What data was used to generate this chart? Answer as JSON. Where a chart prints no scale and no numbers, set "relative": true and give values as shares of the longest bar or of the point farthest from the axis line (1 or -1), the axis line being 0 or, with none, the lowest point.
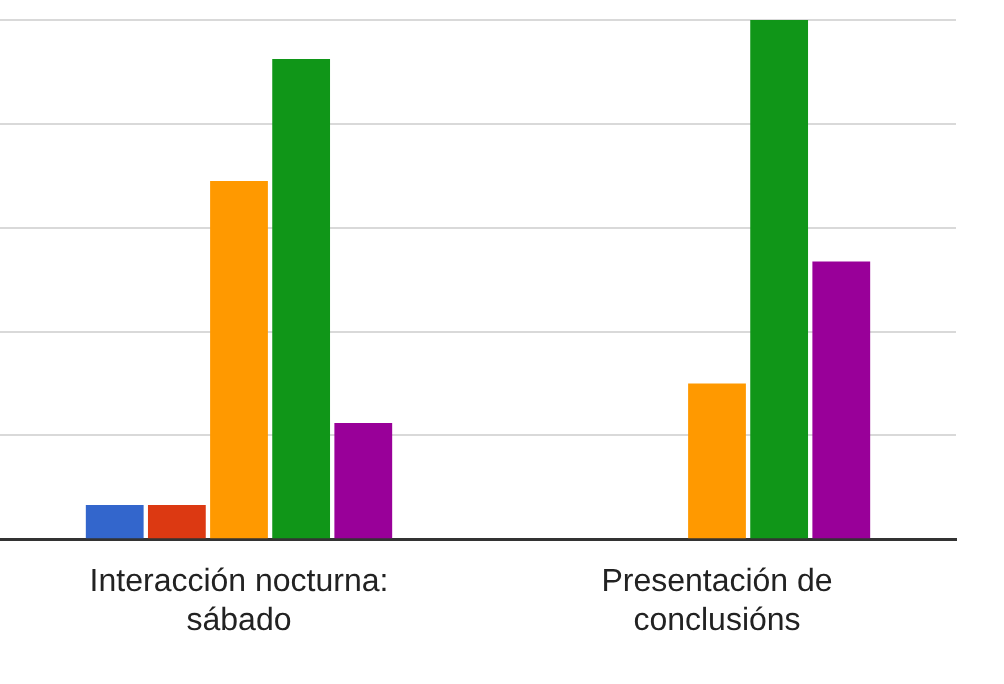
{
  "chart_data": {
    "type": "bar",
    "relative": true,
    "grid": "y",
    "legend": false,
    "categories": [
      "Interacción nocturna: sábado",
      "Presentación de conclusións"
    ],
    "series": [
      {
        "color": "#3366cc",
        "values": [
          0.066,
          0
        ]
      },
      {
        "color": "#dc3912",
        "values": [
          0.066,
          0
        ]
      },
      {
        "color": "#ff9900",
        "values": [
          0.69,
          0.3
        ]
      },
      {
        "color": "#109618",
        "values": [
          0.925,
          1
        ]
      },
      {
        "color": "#990099",
        "values": [
          0.224,
          0.535
        ]
      }
    ]
  }
}
